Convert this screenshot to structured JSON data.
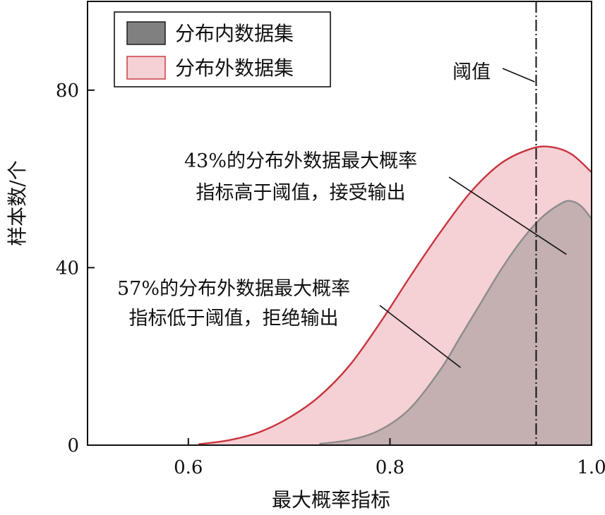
{
  "chart_data": {
    "type": "area",
    "xlabel": "最大概率指标",
    "ylabel": "样本数/个",
    "xlim": [
      0.5,
      1.0
    ],
    "ylim": [
      0,
      100
    ],
    "xticks": [
      0.6,
      0.8,
      1.0
    ],
    "xtick_labels": [
      "0.6",
      "0.8",
      "1.0"
    ],
    "yticks": [
      0,
      40,
      80
    ],
    "ytick_labels": [
      "0",
      "40",
      "80"
    ],
    "grid": false,
    "legend_position": "top-left",
    "series": [
      {
        "name": "分布外数据集",
        "color": "#c8343d",
        "fill": "#f5d0d4",
        "x": [
          0.61,
          0.64,
          0.67,
          0.7,
          0.73,
          0.76,
          0.79,
          0.82,
          0.85,
          0.88,
          0.91,
          0.94,
          0.96,
          0.98,
          1.0
        ],
        "y": [
          0.2,
          1.1,
          2.9,
          6.2,
          11.0,
          18.0,
          27.5,
          38.0,
          48.0,
          57.0,
          63.5,
          66.8,
          67.2,
          65.6,
          61.5
        ]
      },
      {
        "name": "分布内数据集",
        "color": "#8c8c8c",
        "fill": "#808080",
        "x": [
          0.73,
          0.76,
          0.79,
          0.82,
          0.85,
          0.87,
          0.89,
          0.91,
          0.93,
          0.95,
          0.97,
          0.98,
          0.99,
          1.0
        ],
        "y": [
          0.3,
          1.2,
          3.4,
          8.3,
          17.0,
          24.5,
          32.0,
          39.5,
          46.0,
          51.2,
          54.5,
          55.0,
          53.8,
          51.0
        ]
      }
    ],
    "threshold": {
      "label": "阈值",
      "x": 0.945
    },
    "annotations": [
      {
        "lines": [
          "43%的分布外数据最大概率",
          "指标高于阈值，接受输出"
        ],
        "target": [
          0.975,
          43.0
        ]
      },
      {
        "lines": [
          "57%的分布外数据最大概率",
          "指标低于阈值，拒绝输出"
        ],
        "target": [
          0.87,
          17.5
        ]
      }
    ]
  }
}
